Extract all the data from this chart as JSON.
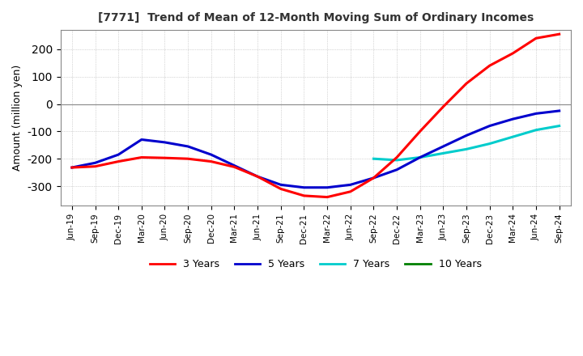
{
  "title": "[7771]  Trend of Mean of 12-Month Moving Sum of Ordinary Incomes",
  "ylabel": "Amount (million yen)",
  "line_colors": {
    "3y": "#ff0000",
    "5y": "#0000cd",
    "7y": "#00cccc",
    "10y": "#008000"
  },
  "legend_labels": [
    "3 Years",
    "5 Years",
    "7 Years",
    "10 Years"
  ],
  "ylim": [
    -370,
    270
  ],
  "yticks": [
    -300,
    -200,
    -100,
    0,
    100,
    200
  ],
  "background_color": "#ffffff",
  "grid_color": "#aaaaaa",
  "x_labels": [
    "Jun-19",
    "Sep-19",
    "Dec-19",
    "Mar-20",
    "Jun-20",
    "Sep-20",
    "Dec-20",
    "Mar-21",
    "Jun-21",
    "Sep-21",
    "Dec-21",
    "Mar-22",
    "Jun-22",
    "Sep-22",
    "Dec-22",
    "Mar-23",
    "Jun-23",
    "Sep-23",
    "Dec-23",
    "Mar-24",
    "Jun-24",
    "Sep-24"
  ],
  "data_3y": [
    -232,
    -228,
    -210,
    -195,
    -197,
    -200,
    -210,
    -230,
    -265,
    -310,
    -335,
    -340,
    -320,
    -270,
    -195,
    -100,
    -10,
    75,
    140,
    185,
    240,
    255
  ],
  "data_5y": [
    -232,
    -215,
    -185,
    -130,
    -140,
    -155,
    -185,
    -225,
    -265,
    -295,
    -305,
    -305,
    -295,
    -270,
    -240,
    -195,
    -155,
    -115,
    -80,
    -55,
    -35,
    -25
  ],
  "data_7y": [
    null,
    null,
    null,
    null,
    null,
    null,
    null,
    null,
    null,
    null,
    null,
    null,
    null,
    -200,
    -205,
    -195,
    -180,
    -165,
    -145,
    -120,
    -95,
    -80
  ],
  "data_10y": [
    null,
    null,
    null,
    null,
    null,
    null,
    null,
    null,
    null,
    null,
    null,
    null,
    null,
    null,
    null,
    null,
    null,
    null,
    null,
    null,
    null,
    null
  ]
}
